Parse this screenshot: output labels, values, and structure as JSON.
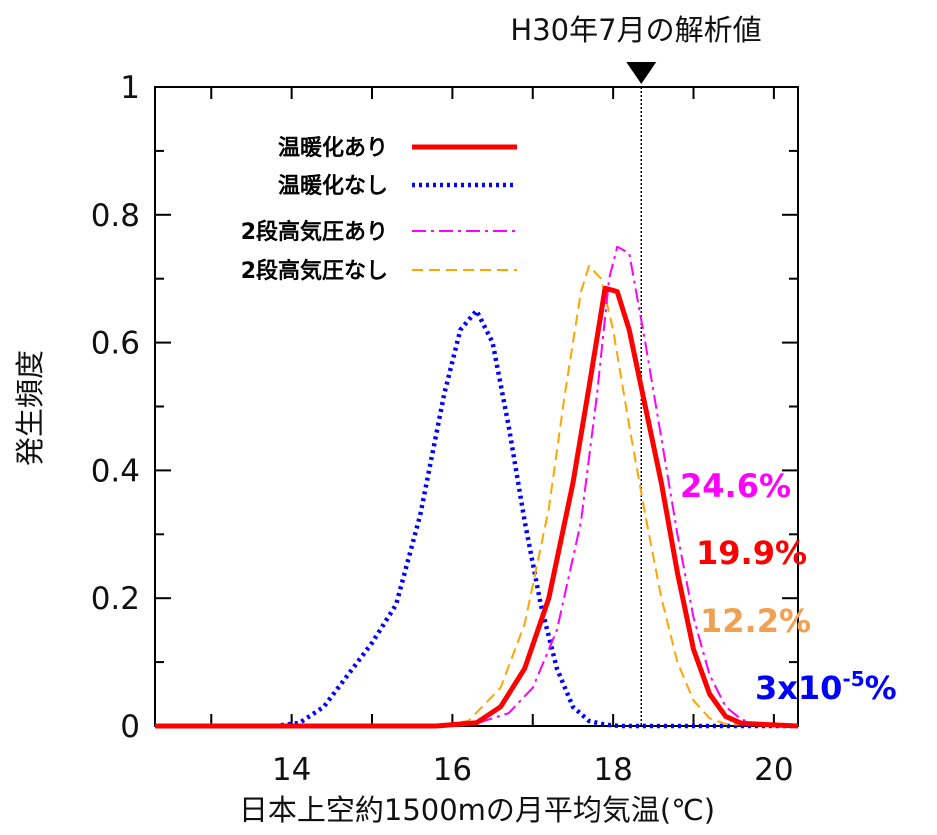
{
  "chart_data": {
    "type": "line",
    "title": "H30年7月の解析値",
    "xlabel": "日本上空約1500mの月平均気温(℃)",
    "ylabel": "発生頻度",
    "xlim": [
      12.3,
      20.3
    ],
    "ylim": [
      0,
      1
    ],
    "xticks": [
      14,
      16,
      18,
      20
    ],
    "yticks": [
      0,
      0.2,
      0.4,
      0.6,
      0.8,
      1
    ],
    "ytick_labels": [
      "0",
      "0.2",
      "0.4",
      "0.6",
      "0.8",
      "1"
    ],
    "grid": false,
    "legend_position": "top-left",
    "reference_line": {
      "x": 18.35,
      "label": "H30年7月の解析値"
    },
    "series": [
      {
        "name": "温暖化あり",
        "color": "#ff0000",
        "style": "solid",
        "x": [
          12.3,
          15.8,
          16.3,
          16.6,
          16.9,
          17.2,
          17.5,
          17.7,
          17.9,
          18.05,
          18.2,
          18.4,
          18.6,
          18.8,
          19.0,
          19.2,
          19.4,
          19.6,
          20.3
        ],
        "y": [
          0,
          0,
          0.005,
          0.03,
          0.09,
          0.2,
          0.38,
          0.53,
          0.685,
          0.68,
          0.62,
          0.5,
          0.38,
          0.24,
          0.12,
          0.05,
          0.015,
          0.004,
          0
        ]
      },
      {
        "name": "温暖化なし",
        "color": "#0000ff",
        "style": "dotted",
        "x": [
          12.3,
          13.8,
          14.1,
          14.4,
          14.7,
          15.0,
          15.3,
          15.6,
          15.9,
          16.1,
          16.3,
          16.5,
          16.7,
          16.9,
          17.1,
          17.3,
          17.5,
          17.7,
          17.9,
          18.1,
          20.3
        ],
        "y": [
          0,
          0,
          0.005,
          0.03,
          0.08,
          0.13,
          0.19,
          0.33,
          0.52,
          0.62,
          0.65,
          0.6,
          0.47,
          0.32,
          0.19,
          0.09,
          0.03,
          0.008,
          0.002,
          0,
          0
        ]
      },
      {
        "name": "2段高気圧あり",
        "color": "#ff00ff",
        "style": "dashdot",
        "x": [
          12.3,
          15.9,
          16.3,
          16.7,
          17.0,
          17.3,
          17.6,
          17.8,
          17.95,
          18.05,
          18.2,
          18.4,
          18.6,
          18.8,
          19.0,
          19.2,
          19.4,
          19.6,
          19.8,
          20.3
        ],
        "y": [
          0,
          0,
          0.004,
          0.02,
          0.06,
          0.15,
          0.32,
          0.52,
          0.7,
          0.75,
          0.74,
          0.6,
          0.45,
          0.3,
          0.17,
          0.08,
          0.03,
          0.01,
          0.003,
          0
        ]
      },
      {
        "name": "2段高気圧なし",
        "color": "#ffa500",
        "style": "dashed",
        "x": [
          12.3,
          15.8,
          16.2,
          16.6,
          16.9,
          17.2,
          17.4,
          17.6,
          17.7,
          17.85,
          18.0,
          18.2,
          18.4,
          18.6,
          18.8,
          19.0,
          19.2,
          19.4,
          20.3
        ],
        "y": [
          0,
          0,
          0.008,
          0.06,
          0.16,
          0.34,
          0.52,
          0.68,
          0.72,
          0.7,
          0.62,
          0.47,
          0.33,
          0.2,
          0.1,
          0.04,
          0.012,
          0.003,
          0
        ]
      }
    ],
    "annotations": [
      {
        "text": "24.6%",
        "color": "#ff00ff"
      },
      {
        "text": "19.9%",
        "color": "#ff0000"
      },
      {
        "text": "12.2%",
        "color": "#f0a050"
      },
      {
        "text": "3x10",
        "superscript": "-5",
        "suffix": "%",
        "color": "#0000ff"
      }
    ]
  }
}
